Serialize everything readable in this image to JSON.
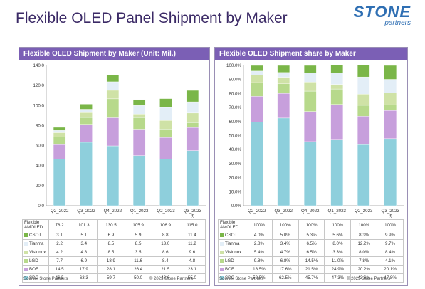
{
  "slide": {
    "title": "Flexible OLED Panel Shipment by Maker",
    "logo_main": "STONE",
    "logo_sub": "partners"
  },
  "colors": {
    "header": "#7b5fb5",
    "SDC": "#8ecfdc",
    "BOE": "#c79fdc",
    "LGD": "#b7d98b",
    "Visionox": "#cfe2a6",
    "Tianma": "#e3eef7",
    "CSOT": "#7ab648"
  },
  "left_panel": {
    "title": "Flexible OLED Shipment by Maker (Unit: Mil.)",
    "row_header": "Flexible AMOLED",
    "source": "Source: Stone Partners",
    "copyright": "© 2023 Stone Partners"
  },
  "right_panel": {
    "title": "Flexible OLED Shipment share by Maker",
    "row_header": "Flexible AMOLED",
    "source": "Source: Stone Partners",
    "copyright": "© 2023 Stone Partners"
  },
  "chart_data": [
    {
      "type": "bar",
      "stacked": true,
      "title": "Flexible OLED Shipment by Maker (Unit: Mil.)",
      "categories": [
        "Q2_2022",
        "Q3_2022",
        "Q4_2022",
        "Q1_2023",
        "Q2_2023",
        "Q3_2023 (f)"
      ],
      "ylim": [
        0,
        140
      ],
      "yticks": [
        "0.0",
        "20.0",
        "40.0",
        "60.0",
        "80.0",
        "100.0",
        "120.0",
        "140.0"
      ],
      "grid": false,
      "totals": [
        "78.2",
        "101.3",
        "130.5",
        "105.9",
        "106.9",
        "115.0"
      ],
      "series": [
        {
          "name": "SDC",
          "values": [
            46.5,
            63.3,
            59.7,
            50.0,
            46.6,
            55.0
          ],
          "labels": [
            "46.5",
            "63.3",
            "59.7",
            "50.0",
            "46.6",
            "55.0"
          ]
        },
        {
          "name": "BOE",
          "values": [
            14.5,
            17.9,
            28.1,
            26.4,
            21.5,
            23.1
          ],
          "labels": [
            "14.5",
            "17.9",
            "28.1",
            "26.4",
            "21.5",
            "23.1"
          ]
        },
        {
          "name": "LGD",
          "values": [
            7.7,
            6.9,
            18.9,
            11.6,
            8.4,
            4.8
          ],
          "labels": [
            "7.7",
            "6.9",
            "18.9",
            "11.6",
            "8.4",
            "4.8"
          ]
        },
        {
          "name": "Visionox",
          "values": [
            4.2,
            4.8,
            8.5,
            3.5,
            8.6,
            9.6
          ],
          "labels": [
            "4.2",
            "4.8",
            "8.5",
            "3.5",
            "8.6",
            "9.6"
          ]
        },
        {
          "name": "Tianma",
          "values": [
            2.2,
            3.4,
            8.5,
            8.5,
            13.0,
            11.2
          ],
          "labels": [
            "2.2",
            "3.4",
            "8.5",
            "8.5",
            "13.0",
            "11.2"
          ]
        },
        {
          "name": "CSOT",
          "values": [
            3.1,
            5.1,
            6.9,
            5.9,
            8.8,
            11.4
          ],
          "labels": [
            "3.1",
            "5.1",
            "6.9",
            "5.9",
            "8.8",
            "11.4"
          ]
        }
      ]
    },
    {
      "type": "bar",
      "stacked": true,
      "title": "Flexible OLED Shipment share by Maker",
      "categories": [
        "Q2_2022",
        "Q3_2022",
        "Q4_2022",
        "Q1_2023",
        "Q2_2023",
        "Q3_2023 (f)"
      ],
      "ylim": [
        0,
        100
      ],
      "yticks": [
        "0.0%",
        "10.0%",
        "20.0%",
        "30.0%",
        "40.0%",
        "50.0%",
        "60.0%",
        "70.0%",
        "80.0%",
        "90.0%",
        "100.0%"
      ],
      "grid": false,
      "totals": [
        "100%",
        "100%",
        "100%",
        "100%",
        "100%",
        "100%"
      ],
      "series": [
        {
          "name": "SDC",
          "values": [
            59.5,
            62.5,
            45.7,
            47.3,
            43.6,
            47.8
          ],
          "labels": [
            "59.5%",
            "62.5%",
            "45.7%",
            "47.3%",
            "43.6%",
            "47.8%"
          ]
        },
        {
          "name": "BOE",
          "values": [
            18.5,
            17.6,
            21.5,
            24.9,
            20.2,
            20.1
          ],
          "labels": [
            "18.5%",
            "17.6%",
            "21.5%",
            "24.9%",
            "20.2%",
            "20.1%"
          ]
        },
        {
          "name": "LGD",
          "values": [
            9.8,
            6.8,
            14.5,
            11.0,
            7.8,
            4.1
          ],
          "labels": [
            "9.8%",
            "6.8%",
            "14.5%",
            "11.0%",
            "7.8%",
            "4.1%"
          ]
        },
        {
          "name": "Visionox",
          "values": [
            5.4,
            4.7,
            6.5,
            3.3,
            8.0,
            8.4
          ],
          "labels": [
            "5.4%",
            "4.7%",
            "6.5%",
            "3.3%",
            "8.0%",
            "8.4%"
          ]
        },
        {
          "name": "Tianma",
          "values": [
            2.8,
            3.4,
            6.5,
            8.0,
            12.2,
            9.7
          ],
          "labels": [
            "2.8%",
            "3.4%",
            "6.5%",
            "8.0%",
            "12.2%",
            "9.7%"
          ]
        },
        {
          "name": "CSOT",
          "values": [
            4.0,
            5.0,
            5.3,
            5.6,
            8.3,
            9.9
          ],
          "labels": [
            "4.0%",
            "5.0%",
            "5.3%",
            "5.6%",
            "8.3%",
            "9.9%"
          ]
        }
      ]
    }
  ]
}
